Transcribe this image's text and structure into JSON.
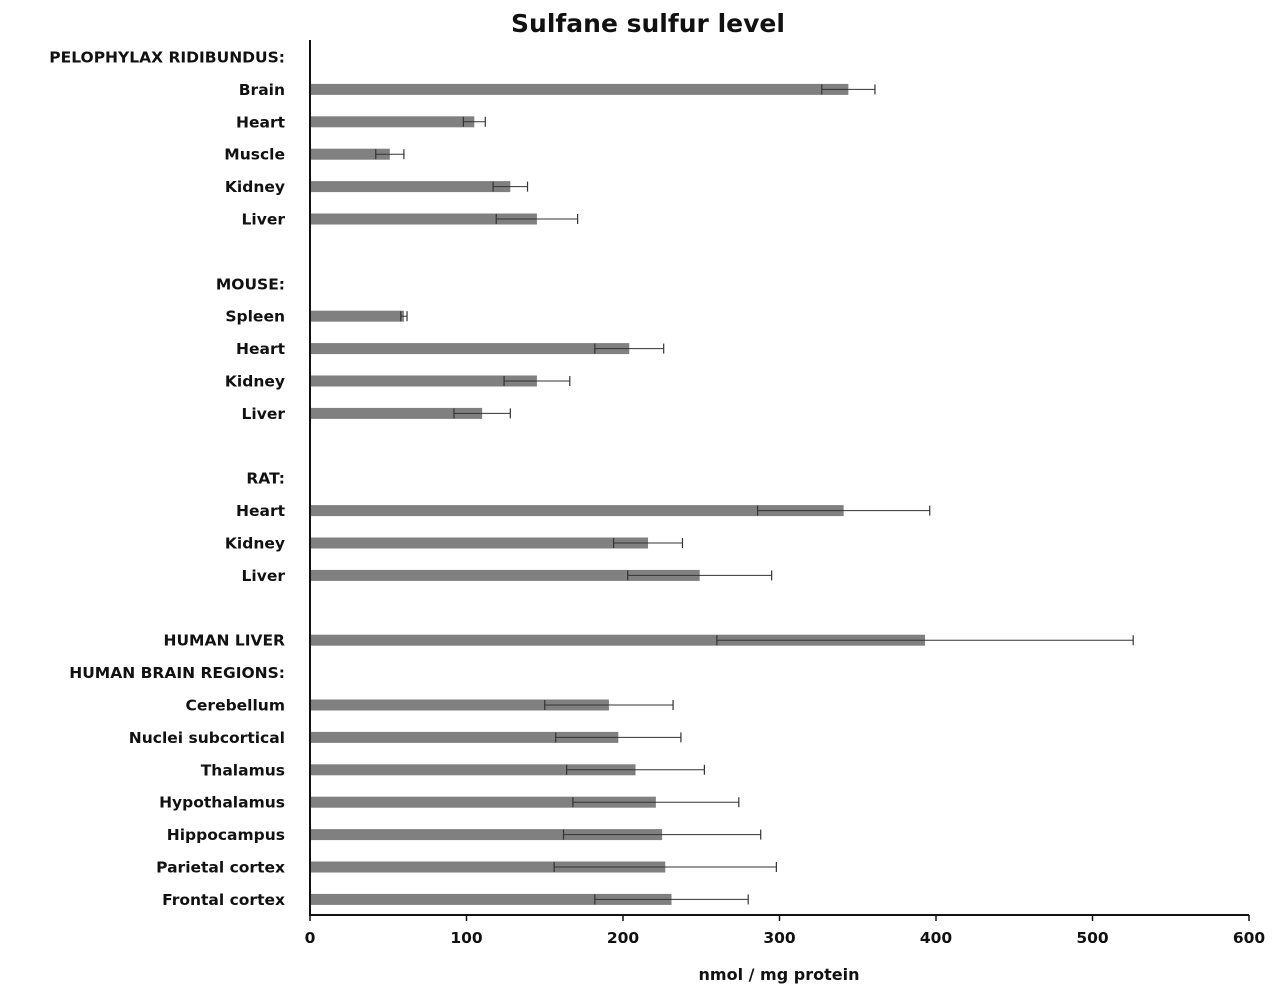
{
  "chart_data": {
    "type": "bar",
    "orientation": "horizontal",
    "title": "Sulfane sulfur level",
    "xlabel": "nmol / mg protein",
    "ylabel": "",
    "xlim": [
      0,
      600
    ],
    "x_ticks": [
      0,
      100,
      200,
      300,
      400,
      500,
      600
    ],
    "grid": false,
    "legend": "none",
    "bar_color": "#808080",
    "error_bar_color": "#333333",
    "rows": [
      {
        "type": "group",
        "label": "PELOPHYLAX RIDIBUNDUS:"
      },
      {
        "type": "bar",
        "label": "Brain",
        "value": 344,
        "error": 17
      },
      {
        "type": "bar",
        "label": "Heart",
        "value": 105,
        "error": 7
      },
      {
        "type": "bar",
        "label": "Muscle",
        "value": 51,
        "error": 9
      },
      {
        "type": "bar",
        "label": "Kidney",
        "value": 128,
        "error": 11
      },
      {
        "type": "bar",
        "label": "Liver",
        "value": 145,
        "error": 26
      },
      {
        "type": "spacer"
      },
      {
        "type": "group",
        "label": "MOUSE:"
      },
      {
        "type": "bar",
        "label": "Spleen",
        "value": 60,
        "error": 2
      },
      {
        "type": "bar",
        "label": "Heart",
        "value": 204,
        "error": 22
      },
      {
        "type": "bar",
        "label": "Kidney",
        "value": 145,
        "error": 21
      },
      {
        "type": "bar",
        "label": "Liver",
        "value": 110,
        "error": 18
      },
      {
        "type": "spacer"
      },
      {
        "type": "group",
        "label": "RAT:"
      },
      {
        "type": "bar",
        "label": "Heart",
        "value": 341,
        "error": 55
      },
      {
        "type": "bar",
        "label": "Kidney",
        "value": 216,
        "error": 22
      },
      {
        "type": "bar",
        "label": "Liver",
        "value": 249,
        "error": 46
      },
      {
        "type": "spacer"
      },
      {
        "type": "group",
        "label": "HUMAN LIVER",
        "value": 393,
        "error": 133
      },
      {
        "type": "group",
        "label": "HUMAN BRAIN REGIONS:"
      },
      {
        "type": "bar",
        "label": "Cerebellum",
        "value": 191,
        "error": 41
      },
      {
        "type": "bar",
        "label": "Nuclei subcortical",
        "value": 197,
        "error": 40
      },
      {
        "type": "bar",
        "label": "Thalamus",
        "value": 208,
        "error": 44
      },
      {
        "type": "bar",
        "label": "Hypothalamus",
        "value": 221,
        "error": 53
      },
      {
        "type": "bar",
        "label": "Hippocampus",
        "value": 225,
        "error": 63
      },
      {
        "type": "bar",
        "label": "Parietal cortex",
        "value": 227,
        "error": 71
      },
      {
        "type": "bar",
        "label": "Frontal cortex",
        "value": 231,
        "error": 49
      }
    ]
  }
}
